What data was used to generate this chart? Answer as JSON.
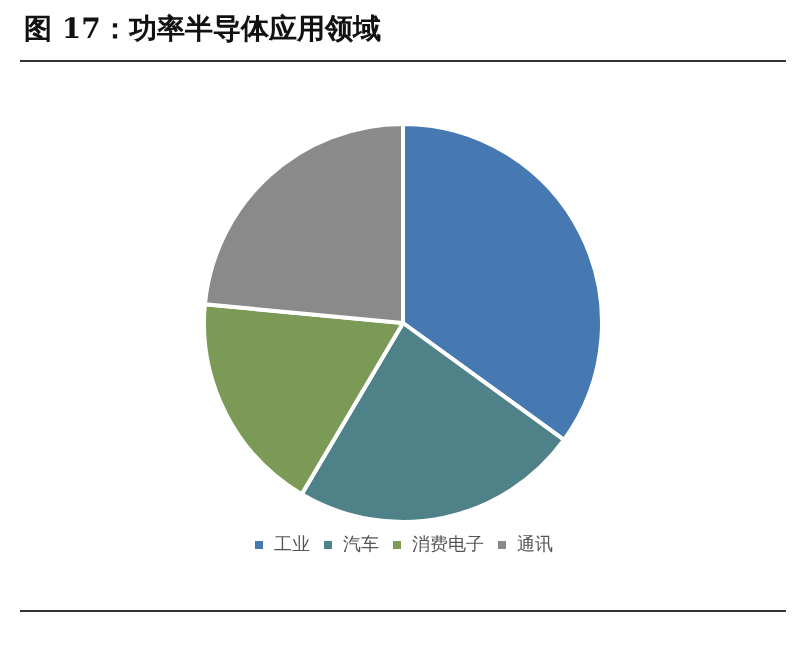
{
  "chart_data": {
    "type": "pie",
    "title": "图 17：功率半导体应用领域",
    "categories": [
      "工业",
      "汽车",
      "消费电子",
      "通讯"
    ],
    "values": [
      35,
      23.5,
      18,
      23.5
    ],
    "colors": [
      "#4679b2",
      "#4f8288",
      "#7b9a56",
      "#8a8a8a"
    ],
    "legend": "bottom"
  }
}
